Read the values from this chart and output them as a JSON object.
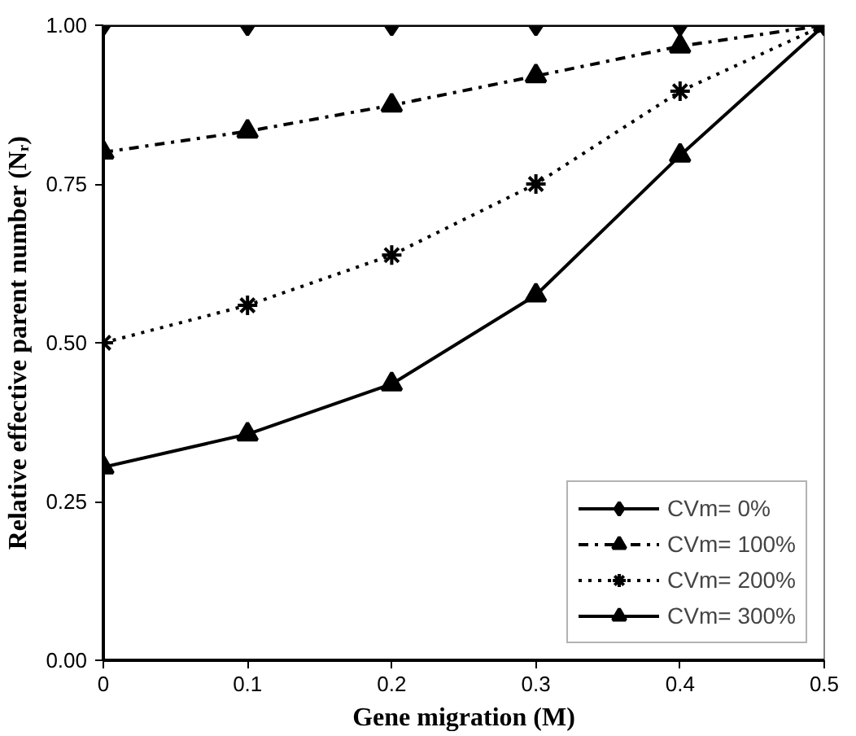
{
  "chart_data": {
    "type": "line",
    "xlabel": "Gene migration (M)",
    "ylabel": "Relative effective parent number (Nᵣ)",
    "x": [
      0,
      0.1,
      0.2,
      0.3,
      0.4,
      0.5
    ],
    "xlim": [
      0,
      0.5
    ],
    "xticks": [
      0,
      0.1,
      0.2,
      0.3,
      0.4,
      0.5
    ],
    "ylim": [
      0,
      1
    ],
    "yticks": [
      {
        "value": 0,
        "label": "0.00"
      },
      {
        "value": 0.25,
        "label": "0.25"
      },
      {
        "value": 0.5,
        "label": "0.50"
      },
      {
        "value": 0.75,
        "label": "0.75"
      },
      {
        "value": 1,
        "label": "1.00"
      }
    ],
    "grid": false,
    "legend": "bottom right",
    "series": [
      {
        "name": "CVm= 0%",
        "color": "#000000",
        "marker": "diamond",
        "line_style": "solid",
        "values": [
          1.0,
          1.0,
          1.0,
          1.0,
          1.0,
          1.0
        ]
      },
      {
        "name": "CVm= 100%",
        "color": "#000000",
        "marker": "triangle",
        "line_style": "dashdot",
        "values": [
          0.8,
          0.833,
          0.874,
          0.92,
          0.967,
          1.0
        ]
      },
      {
        "name": "CVm= 200%",
        "color": "#000000",
        "marker": "cross",
        "line_style": "dotted",
        "values": [
          0.5,
          0.559,
          0.638,
          0.75,
          0.896,
          1.0
        ]
      },
      {
        "name": "CVm= 300%",
        "color": "#000000",
        "marker": "triangle",
        "line_style": "solid",
        "values": [
          0.304,
          0.356,
          0.435,
          0.575,
          0.795,
          1.0
        ]
      }
    ]
  }
}
